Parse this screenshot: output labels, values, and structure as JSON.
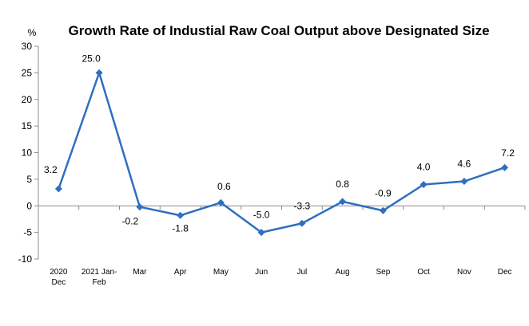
{
  "chart_data": {
    "type": "line",
    "title": "Growth Rate of Industial Raw Coal Output above Designated Size",
    "ylabel": "%",
    "xlabel": "",
    "ylim": [
      -10,
      30
    ],
    "yticks": [
      "30",
      "25",
      "20",
      "15",
      "10",
      "5",
      "0",
      "-5",
      "-10"
    ],
    "categories": [
      [
        "2020",
        "Dec"
      ],
      [
        "2021 Jan-",
        "Feb"
      ],
      [
        "Mar"
      ],
      [
        "Apr"
      ],
      [
        "May"
      ],
      [
        "Jun"
      ],
      [
        "Jul"
      ],
      [
        "Aug"
      ],
      [
        "Sep"
      ],
      [
        "Oct"
      ],
      [
        "Nov"
      ],
      [
        "Dec"
      ]
    ],
    "values": [
      3.2,
      25.0,
      -0.2,
      -1.8,
      0.6,
      -5.0,
      -3.3,
      0.8,
      -0.9,
      4.0,
      4.6,
      7.2
    ],
    "data_labels": [
      "3.2",
      "25.0",
      "-0.2",
      "-1.8",
      "0.6",
      "-5.0",
      "-3.3",
      "0.8",
      "-0.9",
      "4.0",
      "4.6",
      "7.2"
    ],
    "grid": false,
    "legend": "none",
    "line_color": "#2e6fbf"
  }
}
